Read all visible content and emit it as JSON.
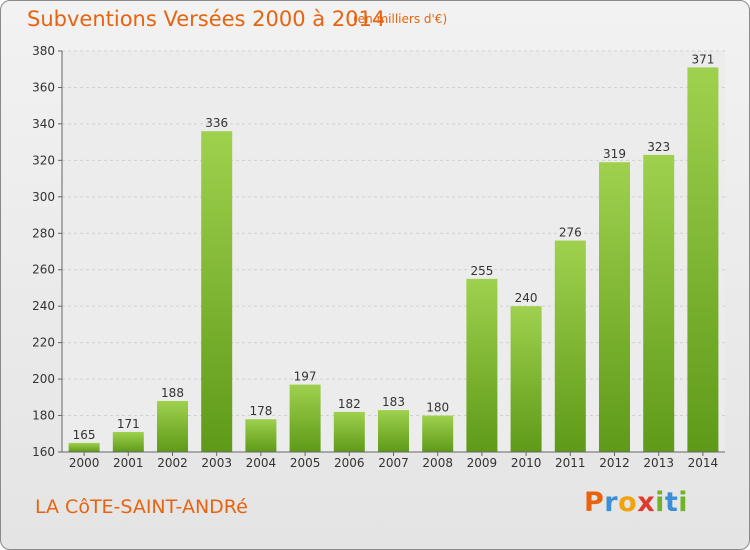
{
  "header": {
    "title": "Subventions Versées 2000 à 2014",
    "subtitle": "(en milliers d'€)"
  },
  "footer": {
    "commune": "LA CôTE-SAINT-ANDRé",
    "logo": {
      "letters": [
        "P",
        "r",
        "o",
        "x",
        "i",
        "t",
        "i"
      ],
      "colors": [
        "#e8630f",
        "#3a8fd6",
        "#f2a20c",
        "#e23a2a",
        "#6fb32a",
        "#3a8fd6",
        "#6fb32a"
      ]
    }
  },
  "chart_data": {
    "type": "bar",
    "title": "Subventions Versées 2000 à 2014",
    "subtitle": "(en milliers d'€)",
    "categories": [
      "2000",
      "2001",
      "2002",
      "2003",
      "2004",
      "2005",
      "2006",
      "2007",
      "2008",
      "2009",
      "2010",
      "2011",
      "2012",
      "2013",
      "2014"
    ],
    "values": [
      165,
      171,
      188,
      336,
      178,
      197,
      182,
      183,
      180,
      255,
      240,
      276,
      319,
      323,
      371
    ],
    "ylim": [
      160,
      380
    ],
    "yticks": [
      160,
      180,
      200,
      220,
      240,
      260,
      280,
      300,
      320,
      340,
      360,
      380
    ],
    "grid": true,
    "colors": {
      "bar_top": "#9fd14e",
      "bar_bottom": "#5e9a18",
      "label": "#333333",
      "grid": "#d0d0d0"
    }
  }
}
